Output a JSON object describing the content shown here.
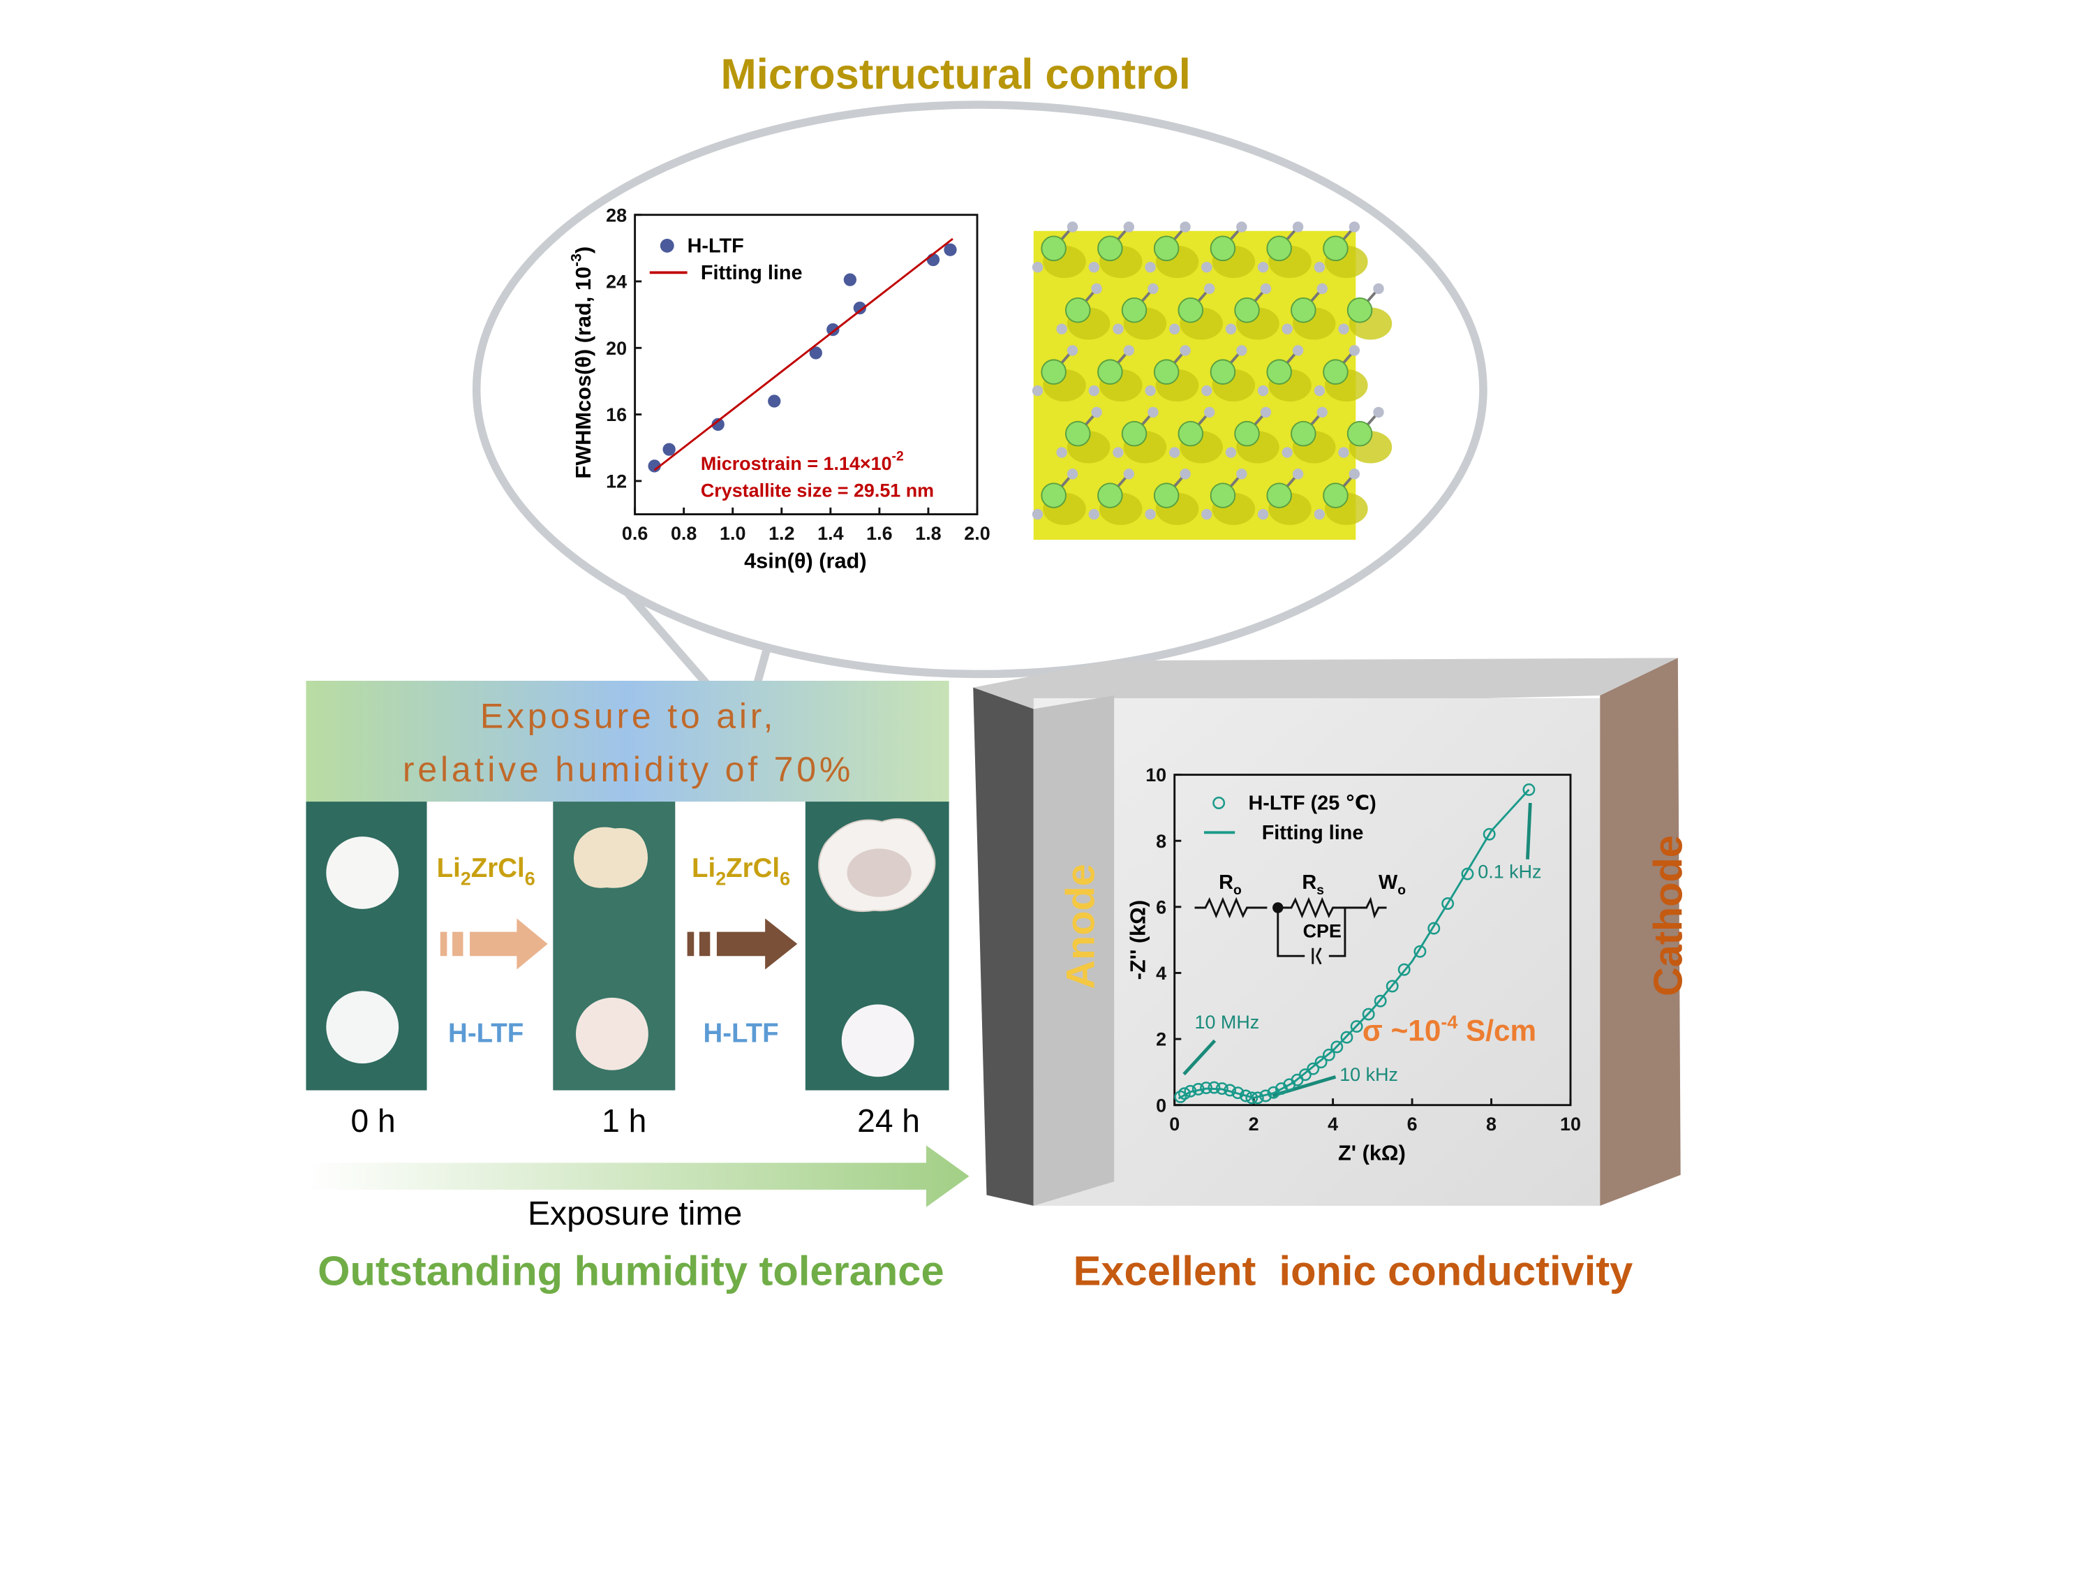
{
  "title": "Microstructural control",
  "left_panel": {
    "header": [
      "Exposure to air,",
      "relative humidity of 70%"
    ],
    "compound": [
      "Li",
      "2",
      "ZrCl",
      "6"
    ],
    "sample": "H-LTF",
    "times": [
      "0 h",
      "1 h",
      "24 h"
    ],
    "arrow_label": "Exposure time",
    "caption": "Outstanding humidity tolerance"
  },
  "right_panel": {
    "anode": "Anode",
    "cathode": "Cathode",
    "caption": "Excellent  ionic conductivity",
    "circuit": [
      {
        "main": "R",
        "sub": "o"
      },
      {
        "main": "R",
        "sub": "s"
      },
      {
        "main": "W",
        "sub": "o"
      },
      "CPE"
    ]
  },
  "chart_data": [
    {
      "type": "scatter",
      "xlabel": "4sin(θ) (rad)",
      "ylabel": [
        "FWHMcos(θ) (rad, 10",
        "-3",
        ")"
      ],
      "xlim": [
        0.6,
        2.0
      ],
      "ylim": [
        10,
        28
      ],
      "xticks": [
        0.6,
        0.8,
        {
          "value": 1,
          "label": "1.0"
        },
        1.2,
        1.4,
        1.6,
        1.8,
        {
          "value": 2,
          "label": "2.0"
        }
      ],
      "yticks": [
        12,
        16,
        20,
        24,
        28
      ],
      "annotations": [
        "Microstrain = 1.14×10",
        "-2",
        "Crystallite size = 29.51 nm"
      ],
      "series": [
        {
          "name": "H-LTF",
          "color": "#4a5a9a",
          "kind": "scatter",
          "filled": true,
          "x": [
            0.68,
            0.74,
            0.94,
            1.17,
            1.34,
            1.41,
            1.48,
            1.52,
            1.82,
            1.89
          ],
          "values": [
            12.9,
            13.9,
            15.4,
            16.8,
            19.7,
            21.1,
            24.1,
            22.4,
            25.3,
            25.9
          ]
        },
        {
          "name": "Fitting line",
          "color": "#c00000",
          "kind": "line",
          "x": [
            0.68,
            1.9
          ],
          "values": [
            12.65,
            26.56
          ]
        }
      ]
    },
    {
      "type": "scatter",
      "xlabel": "Z' (kΩ)",
      "ylabel": "-Z'' (kΩ)",
      "xlim": [
        0,
        10
      ],
      "ylim": [
        0,
        10
      ],
      "xticks": [
        0,
        2,
        4,
        6,
        8,
        10
      ],
      "yticks": [
        0,
        2,
        4,
        6,
        8,
        10
      ],
      "annotations": [
        "10 MHz",
        "10 kHz",
        "0.1 kHz",
        "σ ~10",
        "-4",
        " S/cm"
      ],
      "series": [
        {
          "name": "H-LTF (25 ℃)",
          "color": "#1a9a8a",
          "kind": "scatter",
          "filled": false,
          "x": [
            0.15,
            0.25,
            0.4,
            0.6,
            0.8,
            1.0,
            1.2,
            1.4,
            1.6,
            1.8,
            1.95,
            2.1,
            2.3,
            2.5,
            2.7,
            2.9,
            3.1,
            3.3,
            3.5,
            3.7,
            3.9,
            4.1,
            4.35,
            4.6,
            4.9,
            5.2,
            5.5,
            5.8,
            6.2,
            6.55,
            6.9,
            7.4,
            7.95,
            8.95
          ],
          "values": [
            0.25,
            0.35,
            0.42,
            0.48,
            0.52,
            0.53,
            0.5,
            0.45,
            0.37,
            0.28,
            0.22,
            0.22,
            0.28,
            0.38,
            0.5,
            0.62,
            0.76,
            0.92,
            1.1,
            1.3,
            1.52,
            1.76,
            2.05,
            2.38,
            2.75,
            3.15,
            3.6,
            4.1,
            4.65,
            5.35,
            6.1,
            7.0,
            8.2,
            9.55
          ]
        },
        {
          "name": "Fitting line",
          "color": "#1a9a8a",
          "kind": "line",
          "x": [
            0.1,
            0.4,
            0.8,
            1.2,
            1.6,
            2.0,
            2.5,
            3.0,
            4.0,
            5.0,
            6.0,
            7.0,
            8.0,
            8.95
          ],
          "values": [
            0.2,
            0.4,
            0.5,
            0.48,
            0.35,
            0.22,
            0.36,
            0.68,
            1.65,
            2.9,
            4.35,
            6.3,
            8.3,
            9.55
          ]
        }
      ]
    }
  ]
}
